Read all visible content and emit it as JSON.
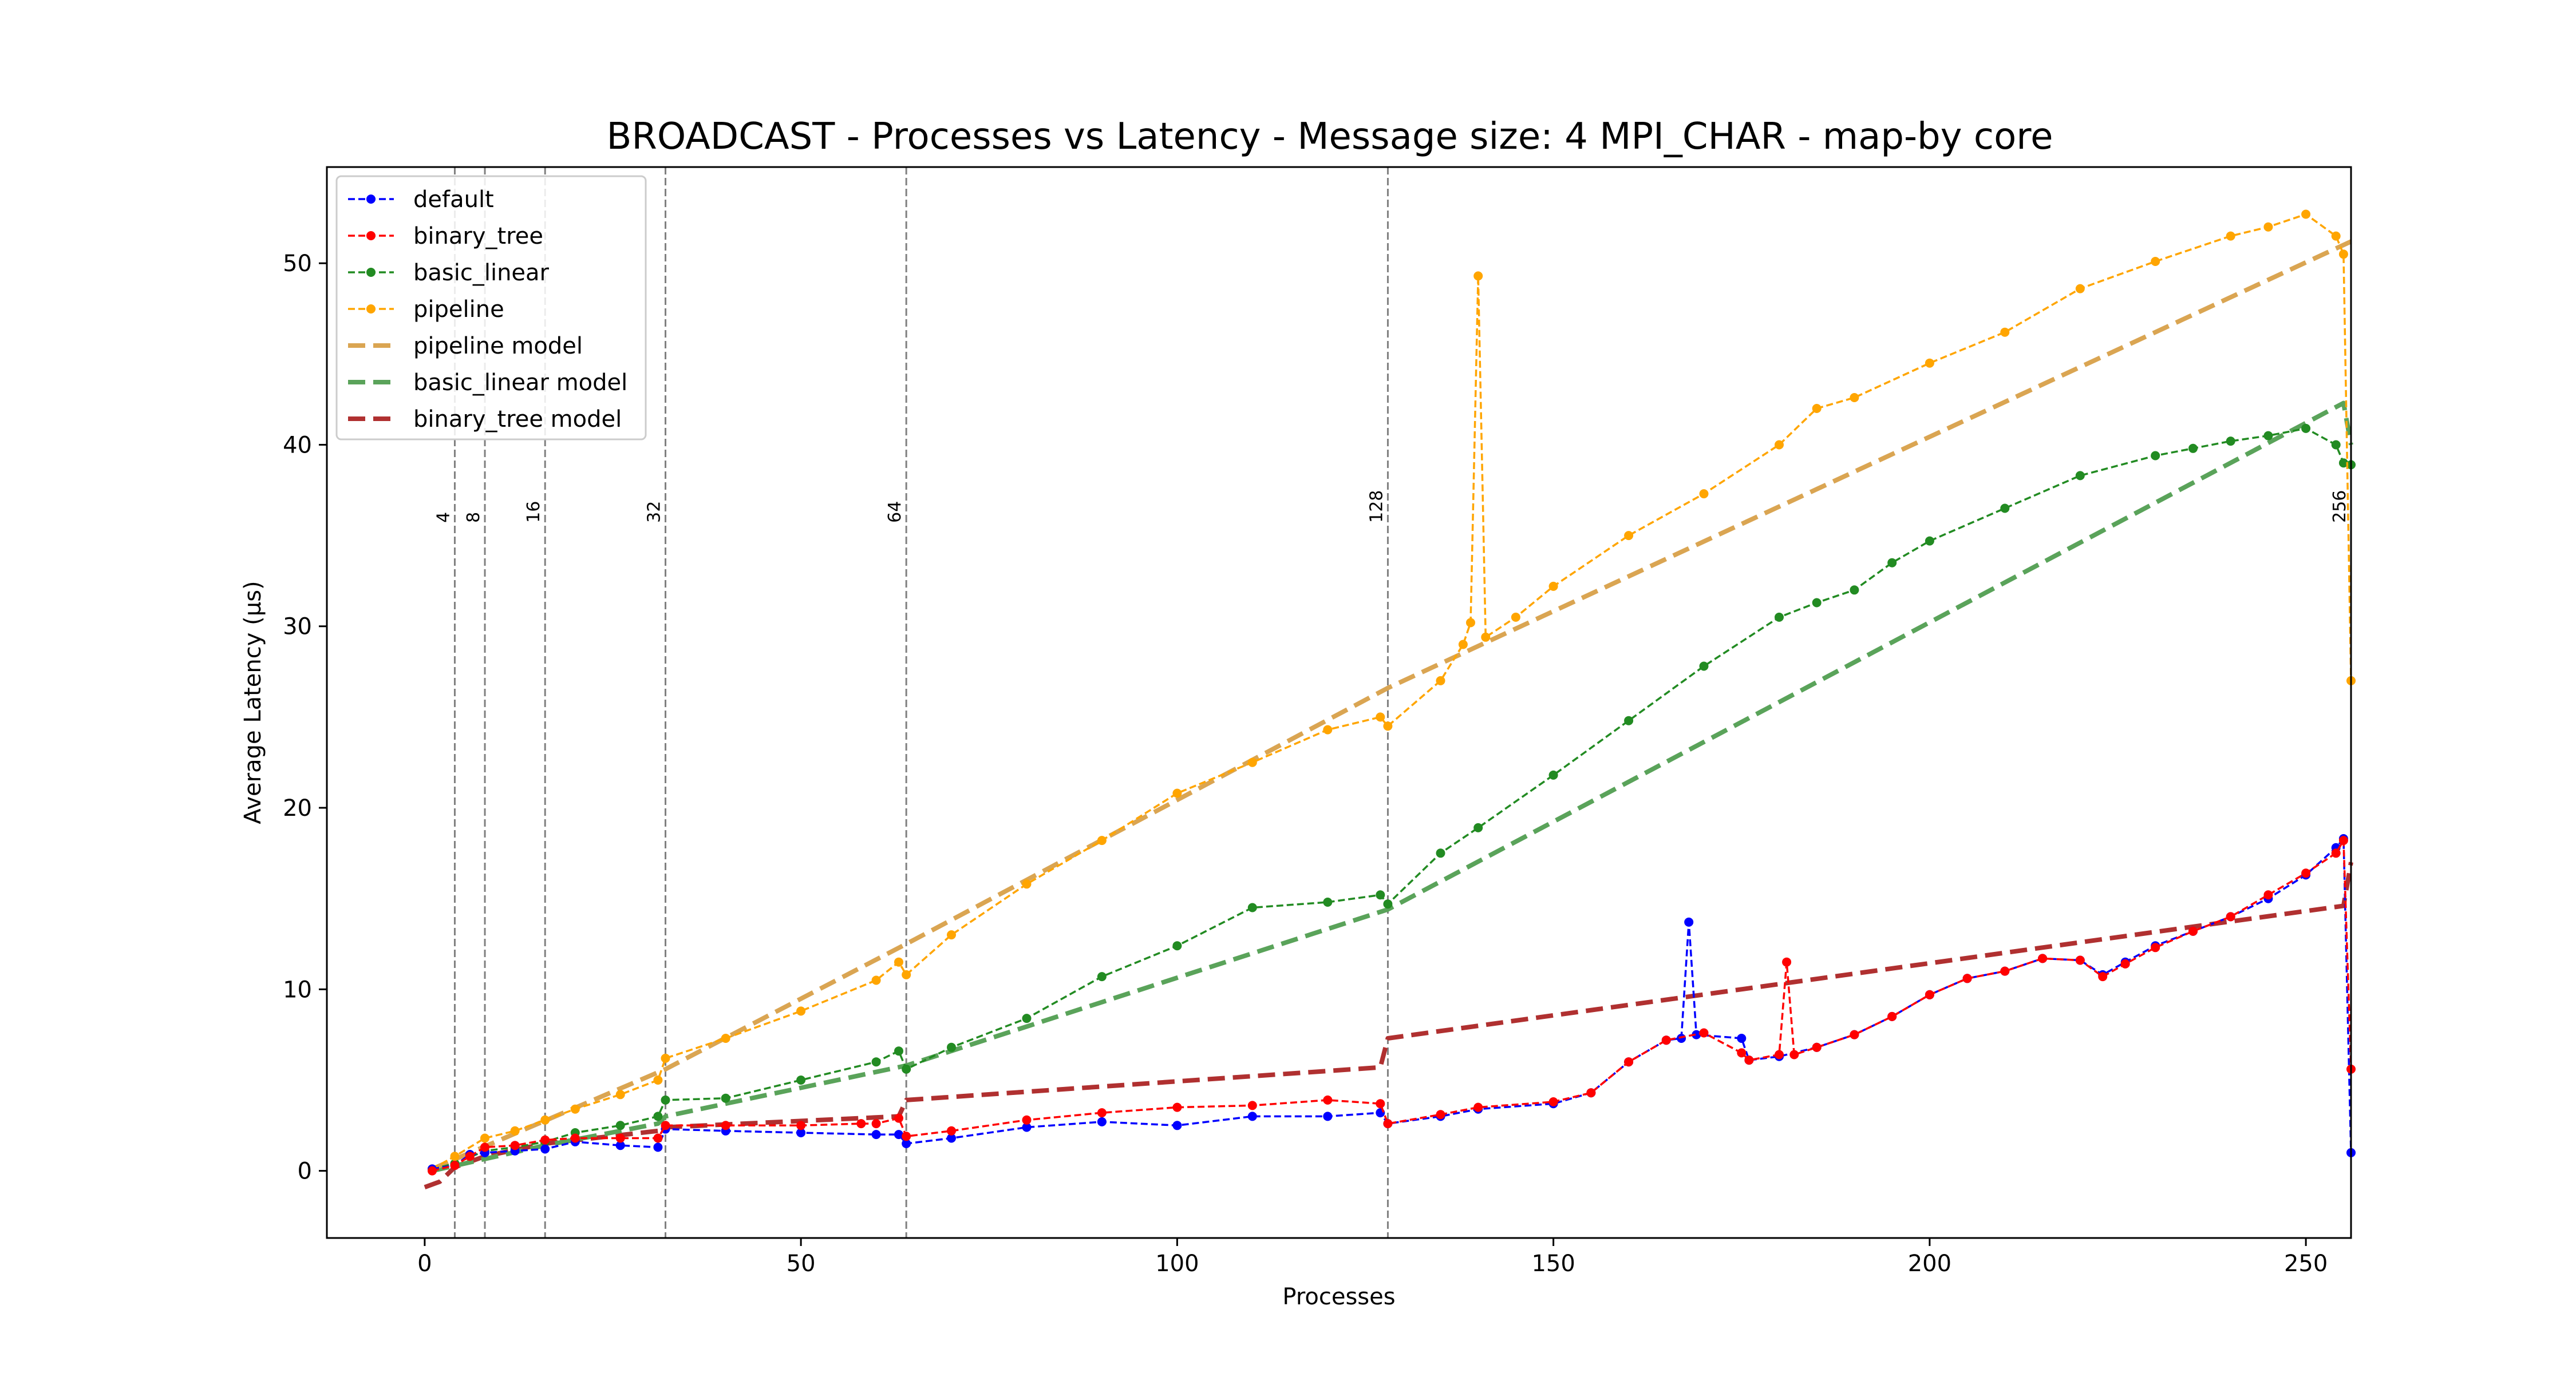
{
  "chart_data": {
    "type": "line",
    "title": "BROADCAST - Processes vs Latency - Message size: 4 MPI_CHAR - map-by core",
    "xlabel": "Processes",
    "ylabel": "Average Latency (μs)",
    "xlim": [
      -13,
      256
    ],
    "ylim": [
      -3.7,
      55.3
    ],
    "xticks": [
      0,
      50,
      100,
      150,
      200,
      250
    ],
    "yticks": [
      0,
      10,
      20,
      30,
      40,
      50
    ],
    "grid": false,
    "legend_position": "top-left",
    "vlines": [
      {
        "x": 4,
        "label": "4"
      },
      {
        "x": 8,
        "label": "8"
      },
      {
        "x": 16,
        "label": "16"
      },
      {
        "x": 32,
        "label": "32"
      },
      {
        "x": 64,
        "label": "64"
      },
      {
        "x": 128,
        "label": "128"
      },
      {
        "x": 256,
        "label": "256"
      }
    ],
    "series": [
      {
        "name": "default",
        "color": "#0000ff",
        "style": "dashed-marker",
        "points": [
          [
            1,
            0.1
          ],
          [
            4,
            0.3
          ],
          [
            6,
            0.9
          ],
          [
            8,
            1.0
          ],
          [
            12,
            1.1
          ],
          [
            16,
            1.2
          ],
          [
            20,
            1.6
          ],
          [
            26,
            1.4
          ],
          [
            31,
            1.3
          ],
          [
            32,
            2.3
          ],
          [
            40,
            2.2
          ],
          [
            50,
            2.1
          ],
          [
            60,
            2.0
          ],
          [
            63,
            2.0
          ],
          [
            64,
            1.5
          ],
          [
            70,
            1.8
          ],
          [
            80,
            2.4
          ],
          [
            90,
            2.7
          ],
          [
            100,
            2.5
          ],
          [
            110,
            3.0
          ],
          [
            120,
            3.0
          ],
          [
            127,
            3.2
          ],
          [
            128,
            2.6
          ],
          [
            135,
            3.0
          ],
          [
            140,
            3.4
          ],
          [
            150,
            3.7
          ],
          [
            155,
            4.3
          ],
          [
            160,
            6.0
          ],
          [
            165,
            7.2
          ],
          [
            167,
            7.3
          ],
          [
            168,
            13.7
          ],
          [
            169,
            7.5
          ],
          [
            175,
            7.3
          ],
          [
            176,
            6.1
          ],
          [
            180,
            6.3
          ],
          [
            185,
            6.8
          ],
          [
            190,
            7.5
          ],
          [
            195,
            8.5
          ],
          [
            200,
            9.7
          ],
          [
            205,
            10.6
          ],
          [
            210,
            11.0
          ],
          [
            215,
            11.7
          ],
          [
            220,
            11.6
          ],
          [
            223,
            10.8
          ],
          [
            226,
            11.5
          ],
          [
            230,
            12.4
          ],
          [
            235,
            13.2
          ],
          [
            240,
            14.0
          ],
          [
            245,
            15.0
          ],
          [
            250,
            16.3
          ],
          [
            254,
            17.8
          ],
          [
            255,
            18.3
          ],
          [
            256,
            1.0
          ]
        ]
      },
      {
        "name": "binary_tree",
        "color": "#ff0000",
        "style": "dashed-marker",
        "points": [
          [
            1,
            0.0
          ],
          [
            4,
            0.3
          ],
          [
            6,
            0.8
          ],
          [
            8,
            1.3
          ],
          [
            12,
            1.4
          ],
          [
            16,
            1.7
          ],
          [
            20,
            1.8
          ],
          [
            26,
            1.8
          ],
          [
            31,
            1.8
          ],
          [
            32,
            2.5
          ],
          [
            40,
            2.5
          ],
          [
            50,
            2.5
          ],
          [
            58,
            2.6
          ],
          [
            60,
            2.6
          ],
          [
            63,
            2.9
          ],
          [
            64,
            1.9
          ],
          [
            70,
            2.2
          ],
          [
            80,
            2.8
          ],
          [
            90,
            3.2
          ],
          [
            100,
            3.5
          ],
          [
            110,
            3.6
          ],
          [
            120,
            3.9
          ],
          [
            127,
            3.7
          ],
          [
            128,
            2.6
          ],
          [
            135,
            3.1
          ],
          [
            140,
            3.5
          ],
          [
            150,
            3.8
          ],
          [
            155,
            4.3
          ],
          [
            160,
            6.0
          ],
          [
            165,
            7.2
          ],
          [
            170,
            7.6
          ],
          [
            175,
            6.5
          ],
          [
            176,
            6.1
          ],
          [
            180,
            6.4
          ],
          [
            181,
            11.5
          ],
          [
            182,
            6.4
          ],
          [
            185,
            6.8
          ],
          [
            190,
            7.5
          ],
          [
            195,
            8.5
          ],
          [
            200,
            9.7
          ],
          [
            205,
            10.6
          ],
          [
            210,
            11.0
          ],
          [
            215,
            11.7
          ],
          [
            220,
            11.6
          ],
          [
            223,
            10.7
          ],
          [
            226,
            11.4
          ],
          [
            230,
            12.3
          ],
          [
            235,
            13.2
          ],
          [
            240,
            14.0
          ],
          [
            245,
            15.2
          ],
          [
            250,
            16.4
          ],
          [
            254,
            17.5
          ],
          [
            255,
            18.2
          ],
          [
            256,
            5.6
          ]
        ]
      },
      {
        "name": "basic_linear",
        "color": "#228b22",
        "style": "dashed-marker",
        "points": [
          [
            1,
            0.1
          ],
          [
            4,
            0.4
          ],
          [
            8,
            1.1
          ],
          [
            12,
            1.3
          ],
          [
            16,
            1.6
          ],
          [
            20,
            2.1
          ],
          [
            26,
            2.5
          ],
          [
            31,
            3.0
          ],
          [
            32,
            3.9
          ],
          [
            40,
            4.0
          ],
          [
            50,
            5.0
          ],
          [
            60,
            6.0
          ],
          [
            63,
            6.6
          ],
          [
            64,
            5.6
          ],
          [
            70,
            6.8
          ],
          [
            80,
            8.4
          ],
          [
            90,
            10.7
          ],
          [
            100,
            12.4
          ],
          [
            110,
            14.5
          ],
          [
            120,
            14.8
          ],
          [
            127,
            15.2
          ],
          [
            128,
            14.7
          ],
          [
            135,
            17.5
          ],
          [
            140,
            18.9
          ],
          [
            150,
            21.8
          ],
          [
            160,
            24.8
          ],
          [
            170,
            27.8
          ],
          [
            180,
            30.5
          ],
          [
            185,
            31.3
          ],
          [
            190,
            32.0
          ],
          [
            195,
            33.5
          ],
          [
            200,
            34.7
          ],
          [
            210,
            36.5
          ],
          [
            220,
            38.3
          ],
          [
            230,
            39.4
          ],
          [
            235,
            39.8
          ],
          [
            240,
            40.2
          ],
          [
            245,
            40.5
          ],
          [
            250,
            40.9
          ],
          [
            254,
            40.0
          ],
          [
            255,
            39.0
          ],
          [
            256,
            38.9
          ]
        ]
      },
      {
        "name": "pipeline",
        "color": "#ffa500",
        "style": "dashed-marker",
        "points": [
          [
            1,
            0.1
          ],
          [
            4,
            0.8
          ],
          [
            8,
            1.8
          ],
          [
            12,
            2.2
          ],
          [
            16,
            2.8
          ],
          [
            20,
            3.4
          ],
          [
            26,
            4.2
          ],
          [
            31,
            5.0
          ],
          [
            32,
            6.2
          ],
          [
            40,
            7.3
          ],
          [
            50,
            8.8
          ],
          [
            60,
            10.5
          ],
          [
            63,
            11.5
          ],
          [
            64,
            10.8
          ],
          [
            70,
            13.0
          ],
          [
            80,
            15.8
          ],
          [
            90,
            18.2
          ],
          [
            100,
            20.8
          ],
          [
            110,
            22.5
          ],
          [
            120,
            24.3
          ],
          [
            127,
            25.0
          ],
          [
            128,
            24.5
          ],
          [
            135,
            27.0
          ],
          [
            138,
            29.0
          ],
          [
            139,
            30.2
          ],
          [
            140,
            49.3
          ],
          [
            141,
            29.4
          ],
          [
            145,
            30.5
          ],
          [
            150,
            32.2
          ],
          [
            160,
            35.0
          ],
          [
            170,
            37.3
          ],
          [
            180,
            40.0
          ],
          [
            185,
            42.0
          ],
          [
            190,
            42.6
          ],
          [
            200,
            44.5
          ],
          [
            210,
            46.2
          ],
          [
            220,
            48.6
          ],
          [
            230,
            50.1
          ],
          [
            240,
            51.5
          ],
          [
            245,
            52.0
          ],
          [
            250,
            52.7
          ],
          [
            254,
            51.5
          ],
          [
            255,
            50.5
          ],
          [
            256,
            27.0
          ]
        ]
      },
      {
        "name": "pipeline model",
        "color": "#daa552",
        "style": "dashed",
        "points": [
          [
            1,
            0.1
          ],
          [
            32,
            5.6
          ],
          [
            64,
            12.5
          ],
          [
            128,
            26.6
          ],
          [
            256,
            51.2
          ]
        ]
      },
      {
        "name": "basic_linear model",
        "color": "#5aa35a",
        "style": "dashed",
        "points": [
          [
            1,
            0.0
          ],
          [
            16,
            1.4
          ],
          [
            31,
            2.6
          ],
          [
            32,
            3.0
          ],
          [
            64,
            5.8
          ],
          [
            128,
            14.4
          ],
          [
            255,
            42.3
          ],
          [
            256,
            40.0
          ]
        ]
      },
      {
        "name": "binary_tree model",
        "color": "#b03030",
        "style": "dashed",
        "points": [
          [
            0,
            -0.9
          ],
          [
            2,
            -0.6
          ],
          [
            4,
            0.2
          ],
          [
            8,
            0.8
          ],
          [
            16,
            1.5
          ],
          [
            31,
            2.2
          ],
          [
            32,
            2.4
          ],
          [
            63,
            3.0
          ],
          [
            64,
            3.9
          ],
          [
            127,
            5.7
          ],
          [
            128,
            7.3
          ],
          [
            255,
            14.6
          ],
          [
            256,
            17.0
          ]
        ]
      }
    ]
  }
}
